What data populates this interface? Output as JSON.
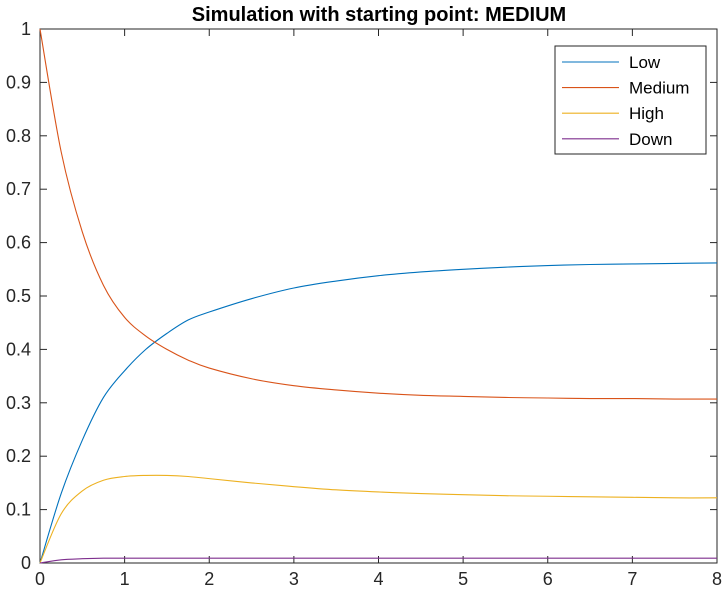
{
  "chart_data": {
    "type": "line",
    "title": "Simulation with starting point: MEDIUM",
    "xlabel": "",
    "ylabel": "",
    "xlim": [
      0,
      8
    ],
    "ylim": [
      0,
      1
    ],
    "x_ticks": [
      0,
      1,
      2,
      3,
      4,
      5,
      6,
      7,
      8
    ],
    "y_ticks": [
      0,
      0.1,
      0.2,
      0.3,
      0.4,
      0.5,
      0.6,
      0.7,
      0.8,
      0.9,
      1
    ],
    "x_tick_labels": [
      "0",
      "1",
      "2",
      "3",
      "4",
      "5",
      "6",
      "7",
      "8"
    ],
    "y_tick_labels": [
      "0",
      "0.1",
      "0.2",
      "0.3",
      "0.4",
      "0.5",
      "0.6",
      "0.7",
      "0.8",
      "0.9",
      "1"
    ],
    "grid": false,
    "legend_position": "top-right",
    "x": [
      0,
      0.25,
      0.5,
      0.75,
      1,
      1.25,
      1.5,
      1.75,
      2,
      2.5,
      3,
      3.5,
      4,
      4.5,
      5,
      5.5,
      6,
      6.5,
      7,
      7.5,
      8
    ],
    "series": [
      {
        "name": "Low",
        "color": "#0072BD",
        "values": [
          0,
          0.13,
          0.23,
          0.31,
          0.36,
          0.4,
          0.43,
          0.455,
          0.47,
          0.495,
          0.515,
          0.528,
          0.538,
          0.545,
          0.55,
          0.554,
          0.557,
          0.559,
          0.56,
          0.561,
          0.562
        ]
      },
      {
        "name": "Medium",
        "color": "#D95319",
        "values": [
          1,
          0.77,
          0.62,
          0.52,
          0.46,
          0.425,
          0.4,
          0.38,
          0.365,
          0.345,
          0.332,
          0.324,
          0.318,
          0.314,
          0.312,
          0.31,
          0.309,
          0.308,
          0.308,
          0.307,
          0.307
        ]
      },
      {
        "name": "High",
        "color": "#EDB120",
        "values": [
          0,
          0.092,
          0.135,
          0.155,
          0.162,
          0.164,
          0.164,
          0.162,
          0.158,
          0.15,
          0.143,
          0.137,
          0.133,
          0.13,
          0.128,
          0.126,
          0.125,
          0.124,
          0.123,
          0.122,
          0.122
        ]
      },
      {
        "name": "Down",
        "color": "#7E2F8E",
        "values": [
          0,
          0.006,
          0.008,
          0.009,
          0.009,
          0.009,
          0.009,
          0.009,
          0.009,
          0.009,
          0.009,
          0.009,
          0.009,
          0.009,
          0.009,
          0.009,
          0.009,
          0.009,
          0.009,
          0.009,
          0.009
        ]
      }
    ]
  }
}
